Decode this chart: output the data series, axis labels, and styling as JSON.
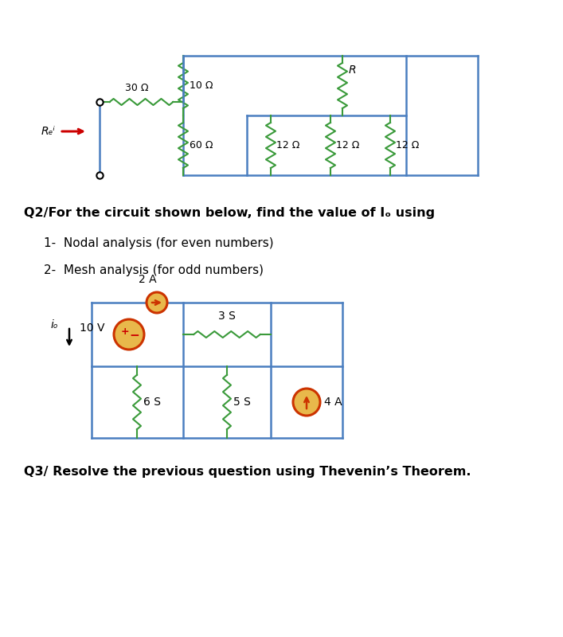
{
  "bg_color": "#ffffff",
  "circuit1": {
    "resistor_color": "#3a9a3a",
    "wire_color": "#4a7ec0",
    "text_color": "#000000",
    "red_color": "#cc0000",
    "labels": {
      "R_10": "10 Ω",
      "R_60": "60 Ω",
      "R_12a": "12 Ω",
      "R_12b": "12 Ω",
      "R_12c": "12 Ω",
      "R_30": "30 Ω",
      "R_label": "R",
      "Req": "Rₑⁱ"
    }
  },
  "circuit2": {
    "resistor_color": "#3a9a3a",
    "wire_color": "#4a7ec0",
    "source_fill": "#e8b84b",
    "source_edge": "#cc3300",
    "text_color": "#000000",
    "labels": {
      "V_10": "10 V",
      "R_3S": "3 S",
      "R_6S": "6 S",
      "R_5S": "5 S",
      "I_2A": "2 A",
      "I_4A": "4 A",
      "io": "iₒ"
    }
  },
  "q2_text": "Q2/For the circuit shown below, find the value of Iₒ using",
  "q2_item1": "1-  Nodal analysis (for even numbers)",
  "q2_item2": "2-  Mesh analysis (for odd numbers)",
  "q3_text": "Q3/ Resolve the previous question using Thevenin’s Theorem."
}
